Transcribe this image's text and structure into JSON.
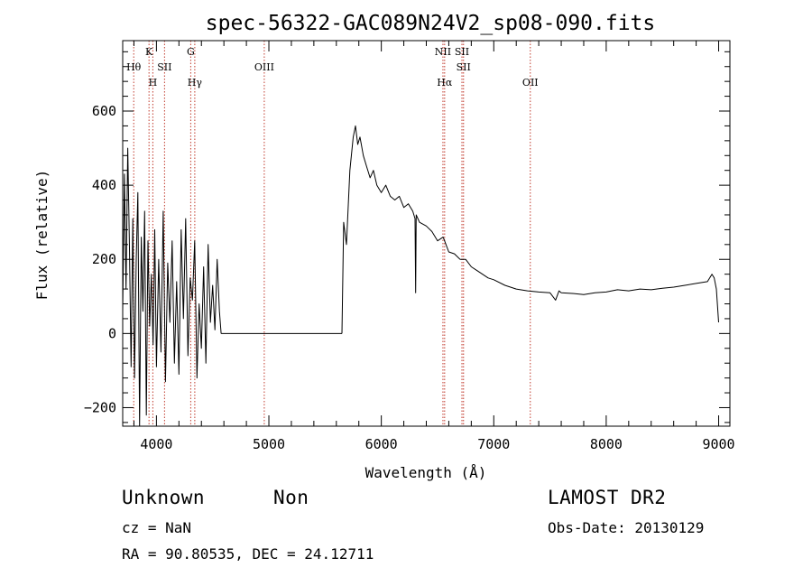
{
  "chart_data": {
    "type": "line",
    "title": "spec-56322-GAC089N24V2_sp08-090.fits",
    "xlabel": "Wavelength (Å)",
    "ylabel": "Flux (relative)",
    "xlim": [
      3700,
      9100
    ],
    "ylim": [
      -250,
      790
    ],
    "xticks": [
      4000,
      5000,
      6000,
      7000,
      8000,
      9000
    ],
    "yticks": [
      -200,
      0,
      200,
      400,
      600
    ],
    "xtick_labels": [
      "4000",
      "5000",
      "6000",
      "7000",
      "8000",
      "9000"
    ],
    "ytick_labels": [
      "−200",
      "0",
      "200",
      "400",
      "600"
    ],
    "spectral_lines": [
      {
        "name": "Hθ",
        "wavelength": 3798,
        "row": 1
      },
      {
        "name": "K",
        "wavelength": 3934,
        "row": 0
      },
      {
        "name": "H",
        "wavelength": 3968,
        "row": 2
      },
      {
        "name": "SII",
        "wavelength": 4072,
        "row": 1
      },
      {
        "name": "G",
        "wavelength": 4305,
        "row": 0
      },
      {
        "name": "Hγ",
        "wavelength": 4341,
        "row": 2
      },
      {
        "name": "OIII",
        "wavelength": 4959,
        "row": 1
      },
      {
        "name": "NII",
        "wavelength": 6548,
        "row": 0
      },
      {
        "name": "Hα",
        "wavelength": 6563,
        "row": 2
      },
      {
        "name": "SII",
        "wavelength": 6717,
        "row": 0
      },
      {
        "name": "SII",
        "wavelength": 6731,
        "row": 1
      },
      {
        "name": "OII",
        "wavelength": 7325,
        "row": 2
      }
    ],
    "series": [
      {
        "name": "flux",
        "segments": [
          {
            "x": [
              3700,
              3715,
              3730,
              3745,
              3760,
              3775,
              3790,
              3805,
              3820,
              3835,
              3850,
              3865,
              3880,
              3895,
              3910,
              3925,
              3940,
              3955,
              3970,
              3985,
              4000,
              4020,
              4040,
              4060,
              4080,
              4100,
              4120,
              4140,
              4160,
              4180,
              4200,
              4220,
              4240,
              4260,
              4280,
              4300,
              4320,
              4340,
              4360,
              4380,
              4400,
              4420,
              4440,
              4460,
              4480,
              4500,
              4520,
              4540,
              4560,
              4575
            ],
            "y": [
              60,
              430,
              120,
              500,
              230,
              -90,
              310,
              -120,
              200,
              380,
              -250,
              260,
              60,
              330,
              -220,
              250,
              20,
              160,
              -30,
              280,
              -90,
              200,
              -50,
              330,
              -130,
              190,
              30,
              250,
              -80,
              140,
              -110,
              280,
              40,
              310,
              -60,
              150,
              90,
              250,
              -120,
              80,
              -40,
              180,
              -80,
              240,
              30,
              130,
              10,
              200,
              60,
              0
            ]
          },
          {
            "x": [
              4575,
              5650
            ],
            "y": [
              0,
              0
            ]
          },
          {
            "x": [
              5650,
              5665,
              5690,
              5720,
              5750,
              5770,
              5790,
              5810,
              5840,
              5870,
              5900,
              5930,
              5960,
              6000,
              6040,
              6080,
              6120,
              6160,
              6200,
              6240,
              6280,
              6300,
              6305,
              6310,
              6340,
              6400,
              6450,
              6500,
              6550,
              6600,
              6650,
              6700,
              6750,
              6800,
              6850,
              6900,
              6950,
              7000,
              7100,
              7200,
              7300,
              7400,
              7500,
              7550,
              7580,
              7600,
              7700,
              7800,
              7900,
              8000,
              8100,
              8200,
              8300,
              8400,
              8500,
              8600,
              8700,
              8800,
              8900,
              8940,
              8960,
              8980,
              9000
            ],
            "y": [
              0,
              300,
              240,
              440,
              530,
              560,
              510,
              530,
              480,
              450,
              420,
              440,
              400,
              380,
              400,
              370,
              360,
              370,
              340,
              350,
              330,
              310,
              110,
              320,
              300,
              290,
              275,
              250,
              260,
              220,
              215,
              200,
              200,
              180,
              170,
              160,
              150,
              145,
              130,
              120,
              115,
              112,
              110,
              90,
              115,
              110,
              108,
              105,
              110,
              112,
              118,
              115,
              120,
              118,
              122,
              125,
              130,
              135,
              140,
              160,
              150,
              120,
              30
            ]
          }
        ]
      }
    ]
  },
  "footer": {
    "class_label": "Unknown",
    "subclass_label": "Non",
    "survey": "LAMOST DR2",
    "redshift": "cz = NaN",
    "obs_date": "Obs-Date: 20130129",
    "coords": "RA =  90.80535, DEC =  24.12711"
  }
}
